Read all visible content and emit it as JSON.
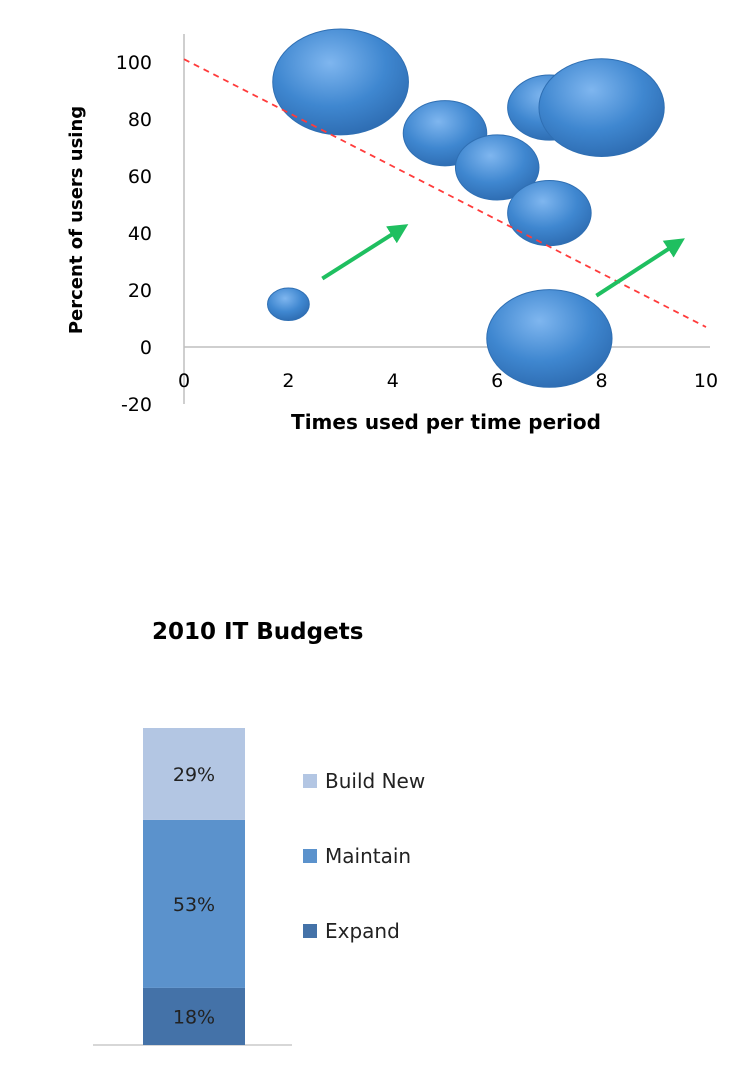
{
  "chart_data": [
    {
      "type": "scatter",
      "subtype": "bubble",
      "title": "",
      "xlabel": "Times used per time period",
      "ylabel": "Percent of users using",
      "xlim": [
        0,
        10
      ],
      "ylim": [
        -20,
        100
      ],
      "xticks": [
        "0",
        "2",
        "4",
        "6",
        "8",
        "10"
      ],
      "yticks": [
        "100",
        "80",
        "60",
        "40",
        "20",
        "0",
        "-20"
      ],
      "bubbles": [
        {
          "x": 2,
          "y": 15,
          "r": 0.4
        },
        {
          "x": 3,
          "y": 93,
          "r": 1.3
        },
        {
          "x": 5,
          "y": 75,
          "r": 0.8
        },
        {
          "x": 6,
          "y": 63,
          "r": 0.8
        },
        {
          "x": 7,
          "y": 84,
          "r": 0.8
        },
        {
          "x": 8,
          "y": 84,
          "r": 1.2
        },
        {
          "x": 7,
          "y": 47,
          "r": 0.8
        },
        {
          "x": 7,
          "y": 3,
          "r": 1.2
        }
      ],
      "trendline": {
        "x": [
          0,
          10
        ],
        "y": [
          101,
          7
        ],
        "color": "#ff3b3b",
        "style": "dashed"
      },
      "arrows": [
        {
          "from": [
            2.65,
            24
          ],
          "to": [
            4.2,
            42
          ],
          "color": "#1fbf60"
        },
        {
          "from": [
            7.9,
            18
          ],
          "to": [
            9.5,
            37
          ],
          "color": "#1fbf60"
        }
      ],
      "bubble_color": "#3f87d0",
      "grid": false,
      "legend": "none"
    },
    {
      "type": "bar",
      "subtype": "stacked",
      "title": "2010 IT Budgets",
      "categories": [
        ""
      ],
      "series": [
        {
          "name": "Expand",
          "values": [
            18
          ],
          "label": "18%",
          "color": "#4472a8"
        },
        {
          "name": "Maintain",
          "values": [
            53
          ],
          "label": "53%",
          "color": "#5b92cc"
        },
        {
          "name": "Build New",
          "values": [
            29
          ],
          "label": "29%",
          "color": "#b3c6e3"
        }
      ],
      "legend_order": [
        "Build New",
        "Maintain",
        "Expand"
      ],
      "ylim": [
        0,
        100
      ],
      "legend": "right",
      "grid": false
    }
  ]
}
